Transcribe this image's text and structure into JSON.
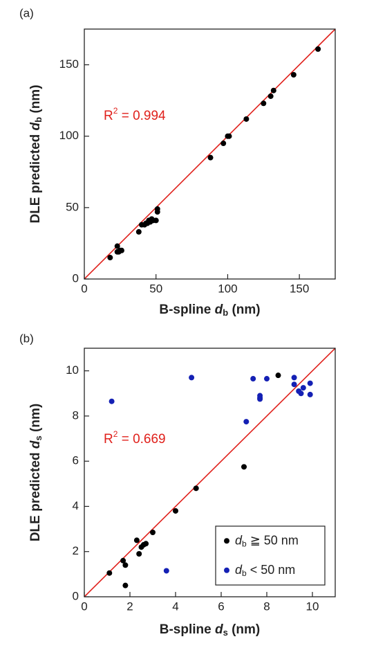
{
  "chart_data": [
    {
      "type": "scatter",
      "panel_label": "(a)",
      "x_label": {
        "prefix": "B-spline ",
        "var": "d",
        "sub": "b",
        "suffix": " (nm)"
      },
      "y_label": {
        "prefix": "DLE predicted ",
        "var": "d",
        "sub": "b",
        "suffix": " (nm)"
      },
      "annotation": {
        "var": "R",
        "sup": "2",
        "text": " = 0.994"
      },
      "identity_line_color": "#e0201b",
      "xlim": [
        0,
        175
      ],
      "ylim": [
        0,
        175
      ],
      "xticks": [
        0,
        50,
        100,
        150
      ],
      "yticks": [
        0,
        50,
        100,
        150
      ],
      "series": [
        {
          "color": "#000000",
          "x": [
            18,
            23,
            23,
            24,
            25,
            26,
            38,
            40,
            42,
            43,
            44,
            45,
            46,
            47,
            48,
            50,
            51,
            51,
            88,
            97,
            100,
            101,
            113,
            125,
            130,
            132,
            146,
            163
          ],
          "values": [
            15,
            23,
            19,
            19,
            20,
            20,
            33,
            38,
            38,
            39,
            39,
            41,
            40,
            42,
            41,
            41,
            47,
            49,
            85,
            95,
            100,
            100,
            112,
            123,
            128,
            132,
            143,
            161
          ]
        }
      ]
    },
    {
      "type": "scatter",
      "panel_label": "(b)",
      "x_label": {
        "prefix": "B-spline ",
        "var": "d",
        "sub": "s",
        "suffix": " (nm)"
      },
      "y_label": {
        "prefix": "DLE predicted ",
        "var": "d",
        "sub": "s",
        "suffix": " (nm)"
      },
      "annotation": {
        "var": "R",
        "sup": "2",
        "text": " = 0.669"
      },
      "identity_line_color": "#e0201b",
      "legend": "lower right",
      "xlim": [
        0,
        11
      ],
      "ylim": [
        0,
        11
      ],
      "xticks": [
        0,
        2,
        4,
        6,
        8,
        10
      ],
      "yticks": [
        0,
        2,
        4,
        6,
        8,
        10
      ],
      "series": [
        {
          "name": [
            "d",
            "b",
            " ≧ 50 nm"
          ],
          "color": "#000000",
          "x": [
            1.1,
            1.7,
            1.8,
            1.8,
            2.3,
            2.4,
            2.5,
            2.6,
            2.7,
            3.0,
            4.0,
            4.9,
            7.0,
            8.5
          ],
          "values": [
            1.05,
            1.6,
            1.4,
            0.5,
            2.5,
            1.9,
            2.2,
            2.3,
            2.35,
            2.85,
            3.8,
            4.8,
            5.75,
            9.8
          ]
        },
        {
          "name": [
            "d",
            "b",
            " < 50 nm"
          ],
          "color": "#1420b4",
          "x": [
            1.2,
            3.6,
            4.7,
            7.1,
            7.4,
            7.7,
            7.7,
            7.7,
            8.0,
            9.2,
            9.2,
            9.4,
            9.5,
            9.6,
            9.9,
            9.9
          ],
          "values": [
            8.65,
            1.15,
            9.7,
            7.75,
            9.65,
            8.9,
            8.8,
            8.75,
            9.65,
            9.7,
            9.4,
            9.1,
            9.0,
            9.25,
            8.95,
            9.45
          ]
        }
      ]
    }
  ]
}
